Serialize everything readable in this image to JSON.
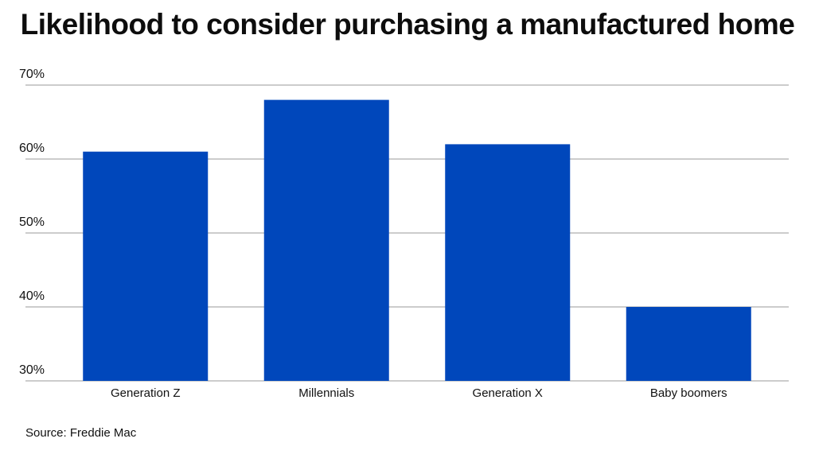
{
  "title": "Likelihood to consider purchasing a manufactured home",
  "source": "Source: Freddie Mac",
  "chart_data": {
    "type": "bar",
    "title": "Likelihood to consider purchasing a manufactured home",
    "categories": [
      "Generation Z",
      "Millennials",
      "Generation X",
      "Baby boomers"
    ],
    "values": [
      61,
      68,
      62,
      40
    ],
    "value_format": "percent",
    "xlabel": "",
    "ylabel": "",
    "ylim": [
      30,
      70
    ],
    "yticks": [
      30,
      40,
      50,
      60,
      70
    ],
    "ytick_labels": [
      "30%",
      "40%",
      "50%",
      "60%",
      "70%"
    ],
    "grid": true,
    "legend": "none",
    "bar_color": "#0047BB",
    "grid_color": "#9a9a9a"
  }
}
